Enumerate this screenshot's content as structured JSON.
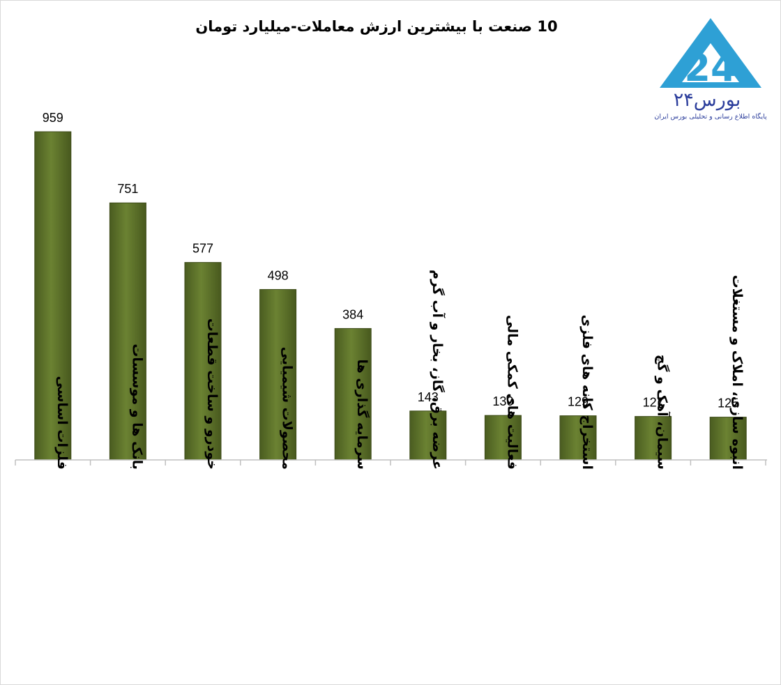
{
  "chart_data": {
    "type": "bar",
    "title": "10 صنعت با بیشترین ارزش معاملات-میلیارد تومان",
    "categories": [
      "فلزات اساسی",
      "بانک ها و موسسات",
      "خودرو و ساخت قطعات",
      "محصولات شیمیایی",
      "سرمایه گذاری ها",
      "عرضه برق، گاز، بخار و آب گرم",
      "فعالیت های کمکی مالی",
      "استخراج کانه های فلزی",
      "سیمان، آهک و گچ",
      "انبوه سازی، املاک و مستغلات"
    ],
    "values": [
      959,
      751,
      577,
      498,
      384,
      143,
      130,
      129,
      127,
      125
    ],
    "ylim": [
      0,
      959
    ],
    "grid": false,
    "legend": "none",
    "bar_color": "#5a6e2a"
  },
  "logo": {
    "name": "بورس۲۴",
    "tagline": "پایگاه اطلاع رسانی و تحلیلی بورس ایران",
    "color": "#2ea0d5"
  }
}
